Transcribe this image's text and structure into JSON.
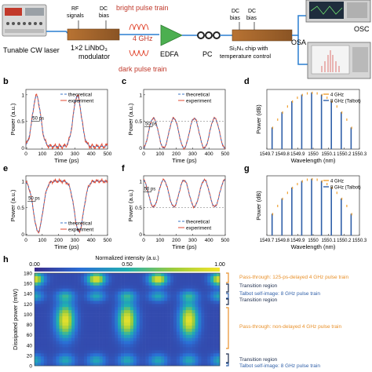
{
  "setup": {
    "laser_label": "Tunable CW laser",
    "rf_label": "RF",
    "signals_label": "signals",
    "dc_label": "DC",
    "bias_label": "bias",
    "modulator_line1": "1×2 LiNbO₃",
    "modulator_line2": "modulator",
    "bright_label": "bright pulse train",
    "dark_label": "dark pulse train",
    "freq_label": "4 GHz",
    "edfa_label": "EDFA",
    "pc_label": "PC",
    "chip_line1": "Si₃N₄ chip with",
    "chip_line2": "temperature control",
    "osc_label": "OSC",
    "osa_label": "OSA"
  },
  "panels": {
    "b": "b",
    "c": "c",
    "d": "d",
    "e": "e",
    "f": "f",
    "g": "g",
    "h": "h"
  },
  "time_plots": {
    "ylabel": "Power (a.u.)",
    "xlabel": "Time (ps)",
    "xticks": [
      "0",
      "100",
      "200",
      "300",
      "400",
      "500"
    ],
    "yticks": [
      "0",
      "0.5",
      "1"
    ],
    "legend_theory": "theoretical",
    "legend_exp": "experiment",
    "annotation": "50 ps",
    "theory_color": "#3b74c4",
    "exp_color": "#e24a33"
  },
  "spectrum_plots": {
    "ylabel": "Power (dB)",
    "xlabel": "Wavelength (nm)",
    "xticks": [
      "1549.7",
      "1549.8",
      "1549.9",
      "1550",
      "1550.1",
      "1550.2",
      "1550.3"
    ],
    "legend_4ghz": "4 GHz",
    "legend_8ghz": "8 GHz (Talbot)",
    "color_4ghz": "#f0a030",
    "color_8ghz": "#2f5fa8"
  },
  "heatmap": {
    "colorbar_title": "Normalized intensity (a.u.)",
    "colorbar_ticks": [
      "0.00",
      "0.50",
      "1.00"
    ],
    "ylabel": "Dissipated power (mW)",
    "yticks": [
      "180",
      "160",
      "140",
      "120",
      "100",
      "80",
      "60",
      "40",
      "20",
      "0"
    ],
    "annotations": [
      {
        "text": "Pass-through: 125-ps-delayed 4 GHz pulse train",
        "color": "#e8902a"
      },
      {
        "text": "Transition region",
        "color": "#1a2a4a"
      },
      {
        "text": "Talbot self-image: 8 GHz pulse train",
        "color": "#2f5fa8"
      },
      {
        "text": "Transition region",
        "color": "#1a2a4a"
      },
      {
        "text": "Pass-through: non-delayed 4 GHz pulse train",
        "color": "#e8902a"
      },
      {
        "text": "Transition region",
        "color": "#1a2a4a"
      },
      {
        "text": "Talbot self-image: 8 GHz pulse train",
        "color": "#2f5fa8"
      }
    ]
  }
}
